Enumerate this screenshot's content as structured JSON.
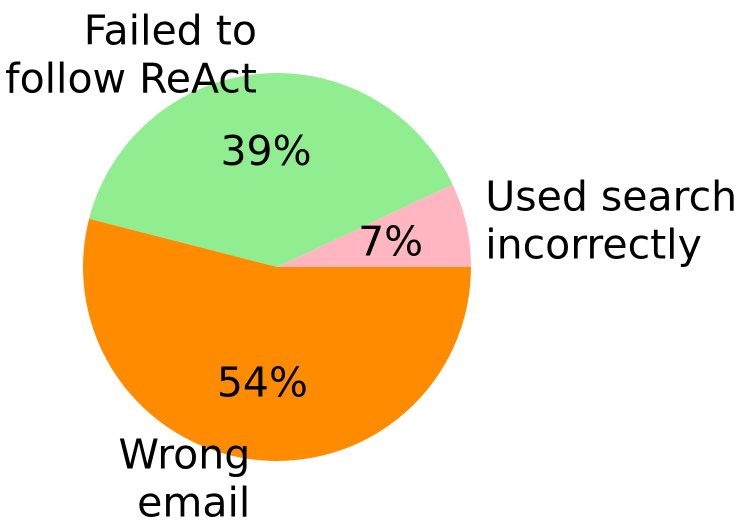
{
  "chart_data": {
    "type": "pie",
    "slices": [
      {
        "label_lines": [
          "Used search",
          "incorrectly"
        ],
        "value": 7,
        "label": "7%",
        "color": "#FFB6C1"
      },
      {
        "label_lines": [
          "Failed to",
          "follow ReAct"
        ],
        "value": 39,
        "label": "39%",
        "color": "#90EE90"
      },
      {
        "label_lines": [
          "Wrong",
          "email"
        ],
        "value": 54,
        "label": "54%",
        "color": "#FF8C00"
      }
    ],
    "start_angle_deg": 0,
    "direction": "counterclockwise"
  }
}
